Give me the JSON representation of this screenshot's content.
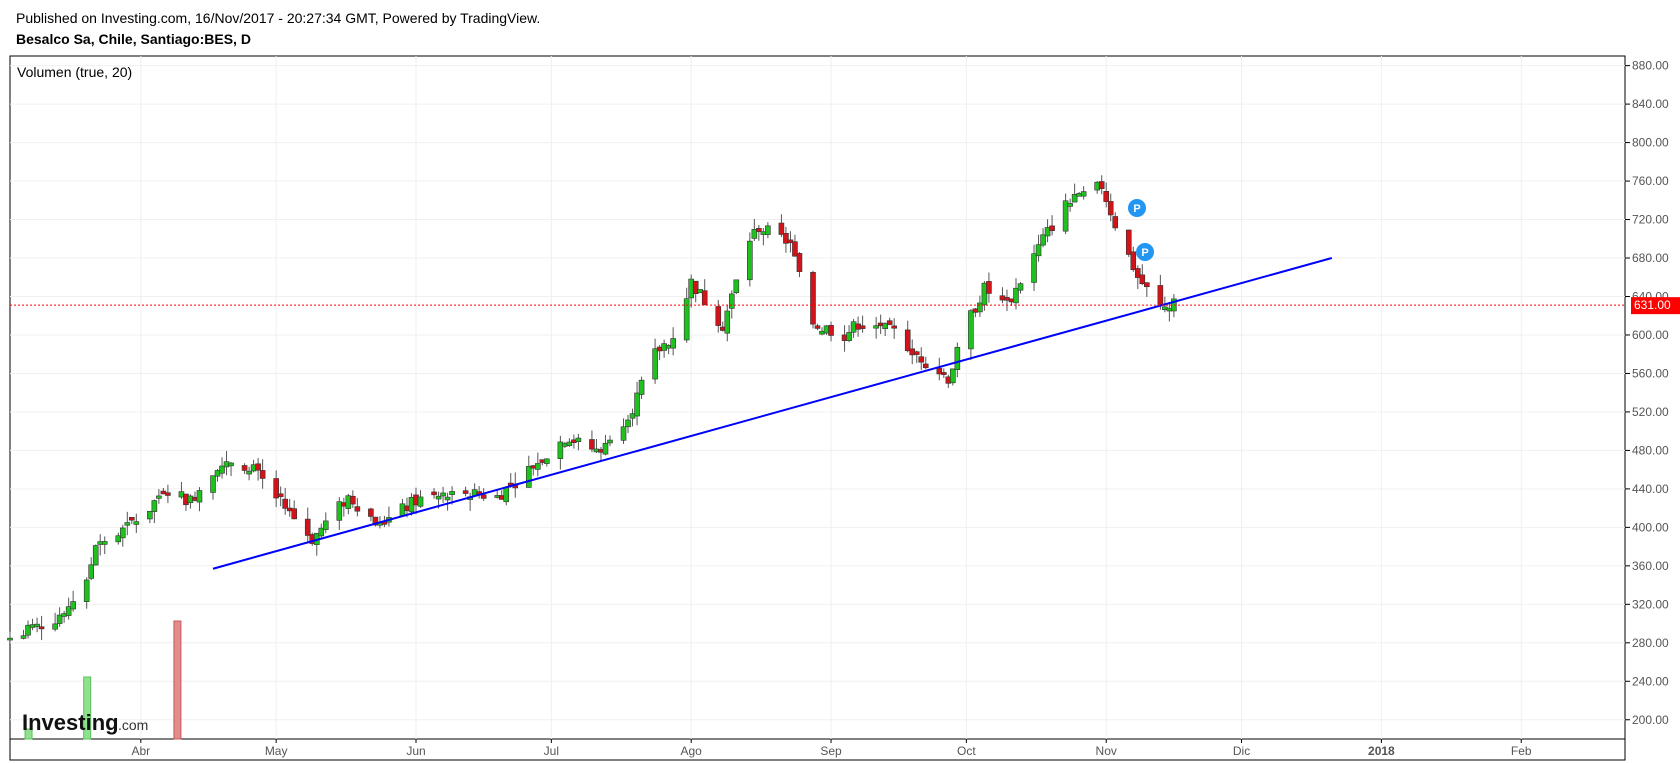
{
  "header": {
    "published": "Published on Investing.com, 16/Nov/2017 - 20:27:34 GMT, Powered by TradingView.",
    "title": "Besalco Sa, Chile, Santiago:BES, D"
  },
  "indicator_label": "Volumen (true, 20)",
  "current_price_label": "631.00",
  "logo": {
    "main": "Investing",
    "suffix": ".com"
  },
  "markers": [
    "P",
    "P"
  ],
  "colors": {
    "up": "#1fc11f",
    "down": "#d1141a",
    "trendline": "#0000ff",
    "price_line": "#ff0000",
    "marker": "#2196f3"
  },
  "chart_data": {
    "type": "candlestick",
    "title": "",
    "xlabel": "",
    "ylabel": "",
    "ylim": [
      180,
      890
    ],
    "yticks": [
      "200.00",
      "240.00",
      "280.00",
      "320.00",
      "360.00",
      "400.00",
      "440.00",
      "480.00",
      "520.00",
      "560.00",
      "600.00",
      "640.00",
      "680.00",
      "720.00",
      "760.00",
      "800.00",
      "840.00",
      "880.00"
    ],
    "xticks": [
      {
        "label": "Abr",
        "date": "2017-04-01"
      },
      {
        "label": "May",
        "date": "2017-05-01"
      },
      {
        "label": "Jun",
        "date": "2017-06-01"
      },
      {
        "label": "Jul",
        "date": "2017-07-01"
      },
      {
        "label": "Ago",
        "date": "2017-08-01"
      },
      {
        "label": "Sep",
        "date": "2017-09-01"
      },
      {
        "label": "Oct",
        "date": "2017-10-01"
      },
      {
        "label": "Nov",
        "date": "2017-11-01"
      },
      {
        "label": "Dic",
        "date": "2017-12-01"
      },
      {
        "label": "2018",
        "date": "2018-01-01"
      },
      {
        "label": "Feb",
        "date": "2018-02-01"
      }
    ],
    "x_range": [
      "2017-03-03",
      "2018-02-24"
    ],
    "current_price": 631,
    "closes": [
      {
        "date": "2017-03-03",
        "close": 285
      },
      {
        "date": "2017-03-13",
        "close": 305
      },
      {
        "date": "2017-03-20",
        "close": 340
      },
      {
        "date": "2017-03-22",
        "close": 385
      },
      {
        "date": "2017-03-27",
        "close": 392
      },
      {
        "date": "2017-04-03",
        "close": 420
      },
      {
        "date": "2017-04-06",
        "close": 440
      },
      {
        "date": "2017-04-12",
        "close": 428
      },
      {
        "date": "2017-04-18",
        "close": 465
      },
      {
        "date": "2017-04-25",
        "close": 465
      },
      {
        "date": "2017-05-04",
        "close": 415
      },
      {
        "date": "2017-05-09",
        "close": 388
      },
      {
        "date": "2017-05-17",
        "close": 432
      },
      {
        "date": "2017-05-24",
        "close": 402
      },
      {
        "date": "2017-06-01",
        "close": 428
      },
      {
        "date": "2017-06-12",
        "close": 436
      },
      {
        "date": "2017-06-19",
        "close": 432
      },
      {
        "date": "2017-06-26",
        "close": 460
      },
      {
        "date": "2017-07-04",
        "close": 493
      },
      {
        "date": "2017-07-12",
        "close": 478
      },
      {
        "date": "2017-07-19",
        "close": 525
      },
      {
        "date": "2017-07-24",
        "close": 580
      },
      {
        "date": "2017-07-28",
        "close": 600
      },
      {
        "date": "2017-08-01",
        "close": 655
      },
      {
        "date": "2017-08-08",
        "close": 610
      },
      {
        "date": "2017-08-14",
        "close": 700
      },
      {
        "date": "2017-08-16",
        "close": 712
      },
      {
        "date": "2017-08-23",
        "close": 695
      },
      {
        "date": "2017-08-28",
        "close": 612
      },
      {
        "date": "2017-09-04",
        "close": 600
      },
      {
        "date": "2017-09-07",
        "close": 612
      },
      {
        "date": "2017-09-15",
        "close": 603
      },
      {
        "date": "2017-09-20",
        "close": 580
      },
      {
        "date": "2017-09-27",
        "close": 555
      },
      {
        "date": "2017-10-02",
        "close": 620
      },
      {
        "date": "2017-10-05",
        "close": 648
      },
      {
        "date": "2017-10-10",
        "close": 630
      },
      {
        "date": "2017-10-18",
        "close": 700
      },
      {
        "date": "2017-10-23",
        "close": 735
      },
      {
        "date": "2017-10-31",
        "close": 755
      },
      {
        "date": "2017-11-03",
        "close": 715
      },
      {
        "date": "2017-11-08",
        "close": 660
      },
      {
        "date": "2017-11-13",
        "close": 628
      },
      {
        "date": "2017-11-16",
        "close": 631
      }
    ],
    "trendline": {
      "start": {
        "date": "2017-04-17",
        "value": 357
      },
      "end": {
        "date": "2017-12-21",
        "value": 680
      }
    },
    "volume_bars": [
      {
        "date": "2017-03-07",
        "direction": "up"
      },
      {
        "date": "2017-03-20",
        "direction": "up"
      },
      {
        "date": "2017-04-09",
        "direction": "down"
      }
    ]
  }
}
